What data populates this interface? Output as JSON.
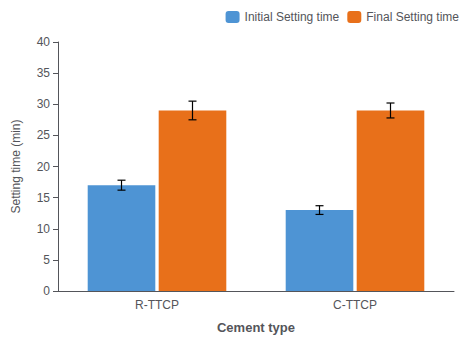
{
  "chart_data": {
    "type": "bar",
    "xlabel": "Cement type",
    "ylabel": "Setting time (min)",
    "categories": [
      "R-TTCP",
      "C-TTCP"
    ],
    "series": [
      {
        "name": "Initial Setting time",
        "color": "#4e94d4",
        "values": [
          17.0,
          13.0
        ],
        "errors": [
          0.8,
          0.7
        ]
      },
      {
        "name": "Final Setting time",
        "color": "#e8701a",
        "values": [
          29.0,
          29.0
        ],
        "errors": [
          1.5,
          1.2
        ]
      }
    ],
    "ylim": [
      0,
      40
    ],
    "yticks": [
      0,
      5,
      10,
      15,
      20,
      25,
      30,
      35,
      40
    ],
    "grid": false,
    "legend": "upper right"
  }
}
